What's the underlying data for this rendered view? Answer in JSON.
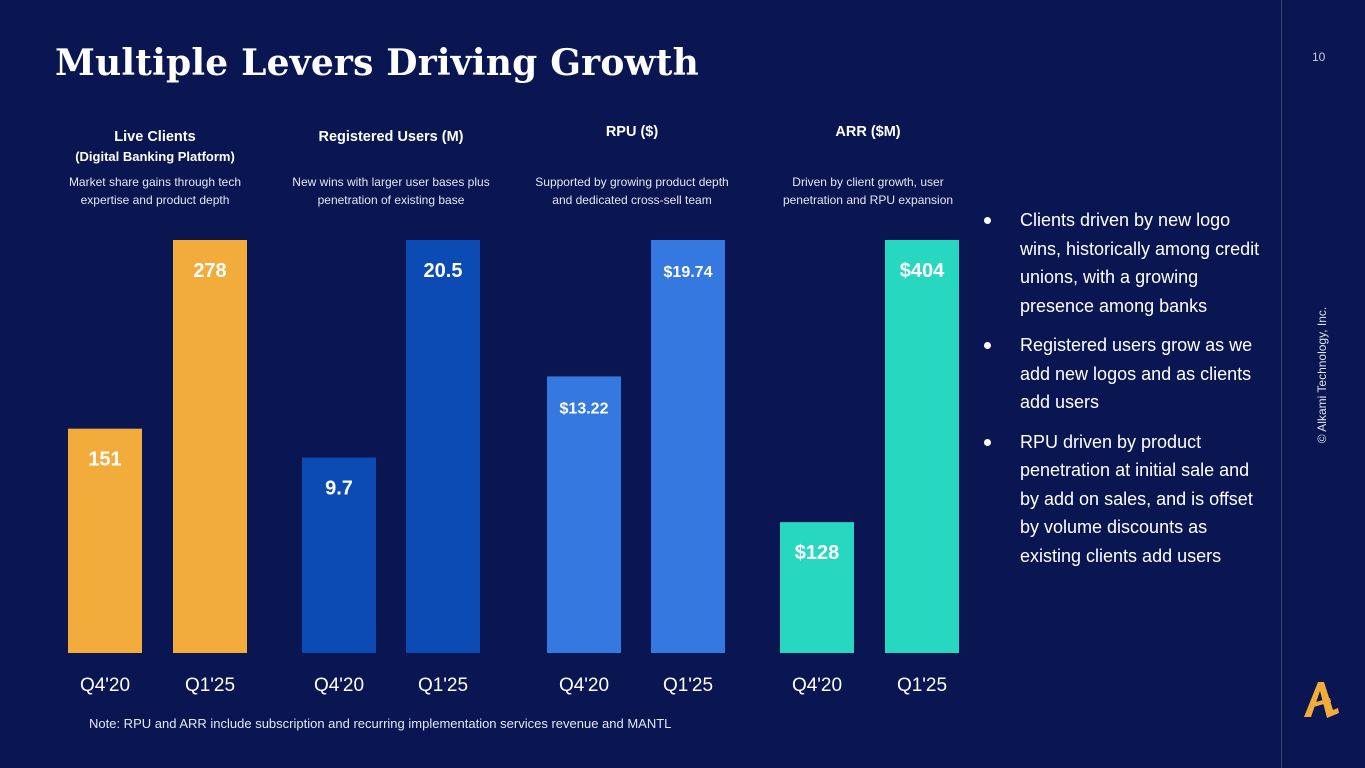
{
  "header": {
    "title": "Multiple Levers Driving Growth",
    "page_number": "10"
  },
  "copyright": "© Alkami Technology, Inc.",
  "note": "Note: RPU and ARR include subscription and recurring implementation services revenue and MANTL",
  "logo": {
    "icon": "alkami-a-logo-icon",
    "color": "#f2ac3c"
  },
  "panels": [
    {
      "title": "Live Clients",
      "subtitle": "(Digital Banking Platform)",
      "description": [
        "Market share gains through tech",
        "expertise and product depth"
      ]
    },
    {
      "title": "Registered Users (M)",
      "description": [
        "New wins with larger user bases plus",
        "penetration of existing base"
      ]
    },
    {
      "title": "RPU ($)",
      "description": [
        "Supported by growing product depth",
        "and dedicated cross-sell team"
      ]
    },
    {
      "title": "ARR ($M)",
      "description": [
        "Driven by client growth, user",
        "penetration and RPU expansion"
      ]
    }
  ],
  "bullets": [
    "Clients driven by new logo wins, historically among credit unions, with a growing presence among banks",
    "Registered users grow as we add new logos and as clients add users",
    "RPU driven by product penetration at initial sale and by add on sales, and is offset by volume discounts as existing clients add users"
  ],
  "chart_data": [
    {
      "type": "bar",
      "title": "Live Clients",
      "categories": [
        "Q4'20",
        "Q1'25"
      ],
      "values": [
        151,
        278
      ],
      "labels": [
        "151",
        "278"
      ],
      "color": "#f2ac3c"
    },
    {
      "type": "bar",
      "title": "Registered Users (M)",
      "categories": [
        "Q4'20",
        "Q1'25"
      ],
      "values": [
        9.7,
        20.5
      ],
      "labels": [
        "9.7",
        "20.5"
      ],
      "color": "#0b4bb3"
    },
    {
      "type": "bar",
      "title": "RPU ($)",
      "categories": [
        "Q4'20",
        "Q1'25"
      ],
      "values": [
        13.22,
        19.74
      ],
      "labels": [
        "$13.22",
        "$19.74"
      ],
      "color": "#3579e0"
    },
    {
      "type": "bar",
      "title": "ARR ($M)",
      "categories": [
        "Q4'20",
        "Q1'25"
      ],
      "values": [
        128,
        404
      ],
      "labels": [
        "$128",
        "$404"
      ],
      "color": "#28d7c0"
    }
  ]
}
